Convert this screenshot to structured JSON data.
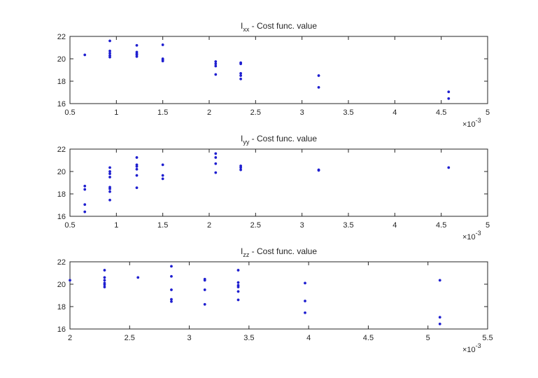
{
  "chart_data": [
    {
      "type": "scatter",
      "title": {
        "main": "I",
        "sub": "xx",
        "rest": " - Cost func. value"
      },
      "xlim": [
        0.0005,
        0.005
      ],
      "ylim": [
        16,
        22
      ],
      "x_ticks": [
        0.0005,
        0.001,
        0.0015,
        0.002,
        0.0025,
        0.003,
        0.0035,
        0.004,
        0.0045,
        0.005
      ],
      "x_tick_labels": [
        "0.5",
        "1",
        "1.5",
        "2",
        "2.5",
        "3",
        "3.5",
        "4",
        "4.5",
        "5"
      ],
      "y_ticks": [
        16,
        18,
        20,
        22
      ],
      "y_tick_labels": [
        "16",
        "18",
        "20",
        "22"
      ],
      "exponent": {
        "base": "×10",
        "power": "-3"
      },
      "points": [
        [
          0.00066,
          20.35
        ],
        [
          0.00093,
          21.6
        ],
        [
          0.00093,
          20.7
        ],
        [
          0.00093,
          20.5
        ],
        [
          0.00093,
          20.3
        ],
        [
          0.00093,
          20.15
        ],
        [
          0.00122,
          21.2
        ],
        [
          0.00122,
          20.6
        ],
        [
          0.00122,
          20.45
        ],
        [
          0.00122,
          20.35
        ],
        [
          0.00122,
          20.2
        ],
        [
          0.0015,
          21.25
        ],
        [
          0.0015,
          20.0
        ],
        [
          0.0015,
          19.9
        ],
        [
          0.0015,
          19.8
        ],
        [
          0.00207,
          19.75
        ],
        [
          0.00207,
          19.55
        ],
        [
          0.00207,
          19.35
        ],
        [
          0.00207,
          18.6
        ],
        [
          0.00234,
          19.65
        ],
        [
          0.00234,
          19.55
        ],
        [
          0.00234,
          18.7
        ],
        [
          0.00234,
          18.5
        ],
        [
          0.00234,
          18.2
        ],
        [
          0.00318,
          18.5
        ],
        [
          0.00318,
          17.45
        ],
        [
          0.00458,
          17.05
        ],
        [
          0.00458,
          16.45
        ]
      ]
    },
    {
      "type": "scatter",
      "title": {
        "main": "I",
        "sub": "yy",
        "rest": " - Cost func. value"
      },
      "xlim": [
        0.0005,
        0.005
      ],
      "ylim": [
        16,
        22
      ],
      "x_ticks": [
        0.0005,
        0.001,
        0.0015,
        0.002,
        0.0025,
        0.003,
        0.0035,
        0.004,
        0.0045,
        0.005
      ],
      "x_tick_labels": [
        "0.5",
        "1",
        "1.5",
        "2",
        "2.5",
        "3",
        "3.5",
        "4",
        "4.5",
        "5"
      ],
      "y_ticks": [
        16,
        18,
        20,
        22
      ],
      "y_tick_labels": [
        "16",
        "18",
        "20",
        "22"
      ],
      "exponent": {
        "base": "×10",
        "power": "-3"
      },
      "points": [
        [
          0.00066,
          18.7
        ],
        [
          0.00066,
          18.4
        ],
        [
          0.00066,
          17.05
        ],
        [
          0.00066,
          16.4
        ],
        [
          0.00093,
          20.35
        ],
        [
          0.00093,
          20.0
        ],
        [
          0.00093,
          19.8
        ],
        [
          0.00093,
          19.5
        ],
        [
          0.00093,
          18.6
        ],
        [
          0.00093,
          18.45
        ],
        [
          0.00093,
          18.2
        ],
        [
          0.00093,
          17.45
        ],
        [
          0.00122,
          21.25
        ],
        [
          0.00122,
          20.6
        ],
        [
          0.00122,
          20.45
        ],
        [
          0.00122,
          20.2
        ],
        [
          0.00122,
          19.65
        ],
        [
          0.00122,
          18.55
        ],
        [
          0.0015,
          20.6
        ],
        [
          0.0015,
          19.65
        ],
        [
          0.0015,
          19.35
        ],
        [
          0.00207,
          21.6
        ],
        [
          0.00207,
          21.25
        ],
        [
          0.00207,
          20.7
        ],
        [
          0.00207,
          19.9
        ],
        [
          0.00234,
          20.5
        ],
        [
          0.00234,
          20.35
        ],
        [
          0.00234,
          20.15
        ],
        [
          0.00318,
          20.15
        ],
        [
          0.00318,
          20.1
        ],
        [
          0.00458,
          20.35
        ]
      ]
    },
    {
      "type": "scatter",
      "title": {
        "main": "I",
        "sub": "zz",
        "rest": " - Cost func. value"
      },
      "xlim": [
        0.002,
        0.0055
      ],
      "ylim": [
        16,
        22
      ],
      "x_ticks": [
        0.002,
        0.0025,
        0.003,
        0.0035,
        0.004,
        0.0045,
        0.005,
        0.0055
      ],
      "x_tick_labels": [
        "2",
        "2.5",
        "3",
        "3.5",
        "4",
        "4.5",
        "5",
        "5.5"
      ],
      "y_ticks": [
        16,
        18,
        20,
        22
      ],
      "y_tick_labels": [
        "16",
        "18",
        "20",
        "22"
      ],
      "exponent": {
        "base": "×10",
        "power": "-3"
      },
      "points": [
        [
          0.002,
          20.35
        ],
        [
          0.00229,
          21.25
        ],
        [
          0.00229,
          20.6
        ],
        [
          0.00229,
          20.35
        ],
        [
          0.00229,
          20.1
        ],
        [
          0.00229,
          19.95
        ],
        [
          0.00229,
          19.75
        ],
        [
          0.00257,
          20.6
        ],
        [
          0.00285,
          21.6
        ],
        [
          0.00285,
          20.7
        ],
        [
          0.00285,
          19.5
        ],
        [
          0.00285,
          18.65
        ],
        [
          0.00285,
          18.45
        ],
        [
          0.00313,
          20.45
        ],
        [
          0.00313,
          20.35
        ],
        [
          0.00313,
          19.5
        ],
        [
          0.00313,
          18.2
        ],
        [
          0.00341,
          21.25
        ],
        [
          0.00341,
          20.15
        ],
        [
          0.00341,
          19.9
        ],
        [
          0.00341,
          19.75
        ],
        [
          0.00341,
          19.35
        ],
        [
          0.00341,
          18.6
        ],
        [
          0.00397,
          20.1
        ],
        [
          0.00397,
          18.5
        ],
        [
          0.00397,
          17.45
        ],
        [
          0.0051,
          20.35
        ],
        [
          0.0051,
          17.05
        ],
        [
          0.0051,
          16.45
        ]
      ]
    }
  ]
}
